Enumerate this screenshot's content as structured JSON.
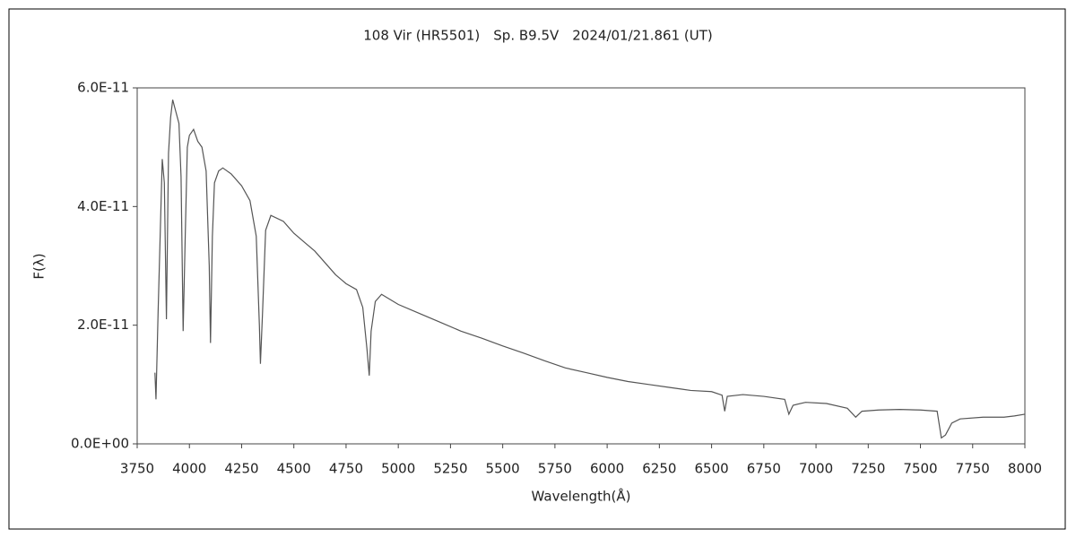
{
  "chart_data": {
    "type": "line",
    "title": "108 Vir (HR5501)　Sp. B9.5V　2024/01/21.861 (UT)",
    "x_label": "Wavelength(Å)",
    "y_label": "F(λ)",
    "xlim": [
      3750,
      8000
    ],
    "xticks": [
      3750,
      4000,
      4250,
      4500,
      4750,
      5000,
      5250,
      5500,
      5750,
      6000,
      6250,
      6500,
      6750,
      7000,
      7250,
      7500,
      7750,
      8000
    ],
    "ylim": [
      0,
      6e-11
    ],
    "yticks": [
      {
        "value": 0,
        "label": "0.0E+00"
      },
      {
        "value": 2e-11,
        "label": "2.0E-11"
      },
      {
        "value": 4e-11,
        "label": "4.0E-11"
      },
      {
        "value": 6e-11,
        "label": "6.0E-11"
      }
    ],
    "series": [
      {
        "color": "#555555",
        "x": [
          3835,
          3840,
          3850,
          3860,
          3870,
          3880,
          3890,
          3900,
          3910,
          3920,
          3935,
          3950,
          3960,
          3970,
          3980,
          3990,
          4000,
          4020,
          4040,
          4060,
          4080,
          4095,
          4101,
          4110,
          4120,
          4140,
          4160,
          4200,
          4250,
          4290,
          4320,
          4335,
          4340,
          4350,
          4365,
          4390,
          4450,
          4500,
          4550,
          4600,
          4650,
          4700,
          4750,
          4800,
          4830,
          4850,
          4861,
          4870,
          4890,
          4920,
          5000,
          5100,
          5200,
          5300,
          5400,
          5500,
          5600,
          5700,
          5800,
          5900,
          6000,
          6100,
          6200,
          6300,
          6400,
          6500,
          6550,
          6563,
          6575,
          6650,
          6750,
          6850,
          6870,
          6890,
          6950,
          7050,
          7150,
          7190,
          7220,
          7300,
          7400,
          7500,
          7580,
          7600,
          7620,
          7650,
          7690,
          7800,
          7900,
          7950,
          8000
        ],
        "values": [
          1.2e-11,
          7.5e-12,
          2.2e-11,
          3.5e-11,
          4.8e-11,
          4.4e-11,
          2.1e-11,
          4.9e-11,
          5.5e-11,
          5.8e-11,
          5.6e-11,
          5.4e-11,
          4.5e-11,
          1.9e-11,
          3.5e-11,
          5e-11,
          5.2e-11,
          5.3e-11,
          5.1e-11,
          5e-11,
          4.6e-11,
          3e-11,
          1.7e-11,
          3.5e-11,
          4.4e-11,
          4.6e-11,
          4.65e-11,
          4.55e-11,
          4.35e-11,
          4.1e-11,
          3.5e-11,
          2e-11,
          1.35e-11,
          2.2e-11,
          3.6e-11,
          3.85e-11,
          3.75e-11,
          3.55e-11,
          3.4e-11,
          3.25e-11,
          3.05e-11,
          2.85e-11,
          2.7e-11,
          2.6e-11,
          2.3e-11,
          1.6e-11,
          1.15e-11,
          1.9e-11,
          2.4e-11,
          2.52e-11,
          2.35e-11,
          2.2e-11,
          2.05e-11,
          1.9e-11,
          1.78e-11,
          1.65e-11,
          1.53e-11,
          1.4e-11,
          1.28e-11,
          1.2e-11,
          1.12e-11,
          1.05e-11,
          1e-11,
          9.5e-12,
          9e-12,
          8.8e-12,
          8.2e-12,
          5.5e-12,
          8e-12,
          8.3e-12,
          8e-12,
          7.5e-12,
          5e-12,
          6.5e-12,
          7e-12,
          6.8e-12,
          6e-12,
          4.5e-12,
          5.5e-12,
          5.7e-12,
          5.8e-12,
          5.7e-12,
          5.5e-12,
          1e-12,
          1.5e-12,
          3.5e-12,
          4.2e-12,
          4.5e-12,
          4.5e-12,
          4.7e-12,
          5e-12
        ]
      }
    ]
  }
}
